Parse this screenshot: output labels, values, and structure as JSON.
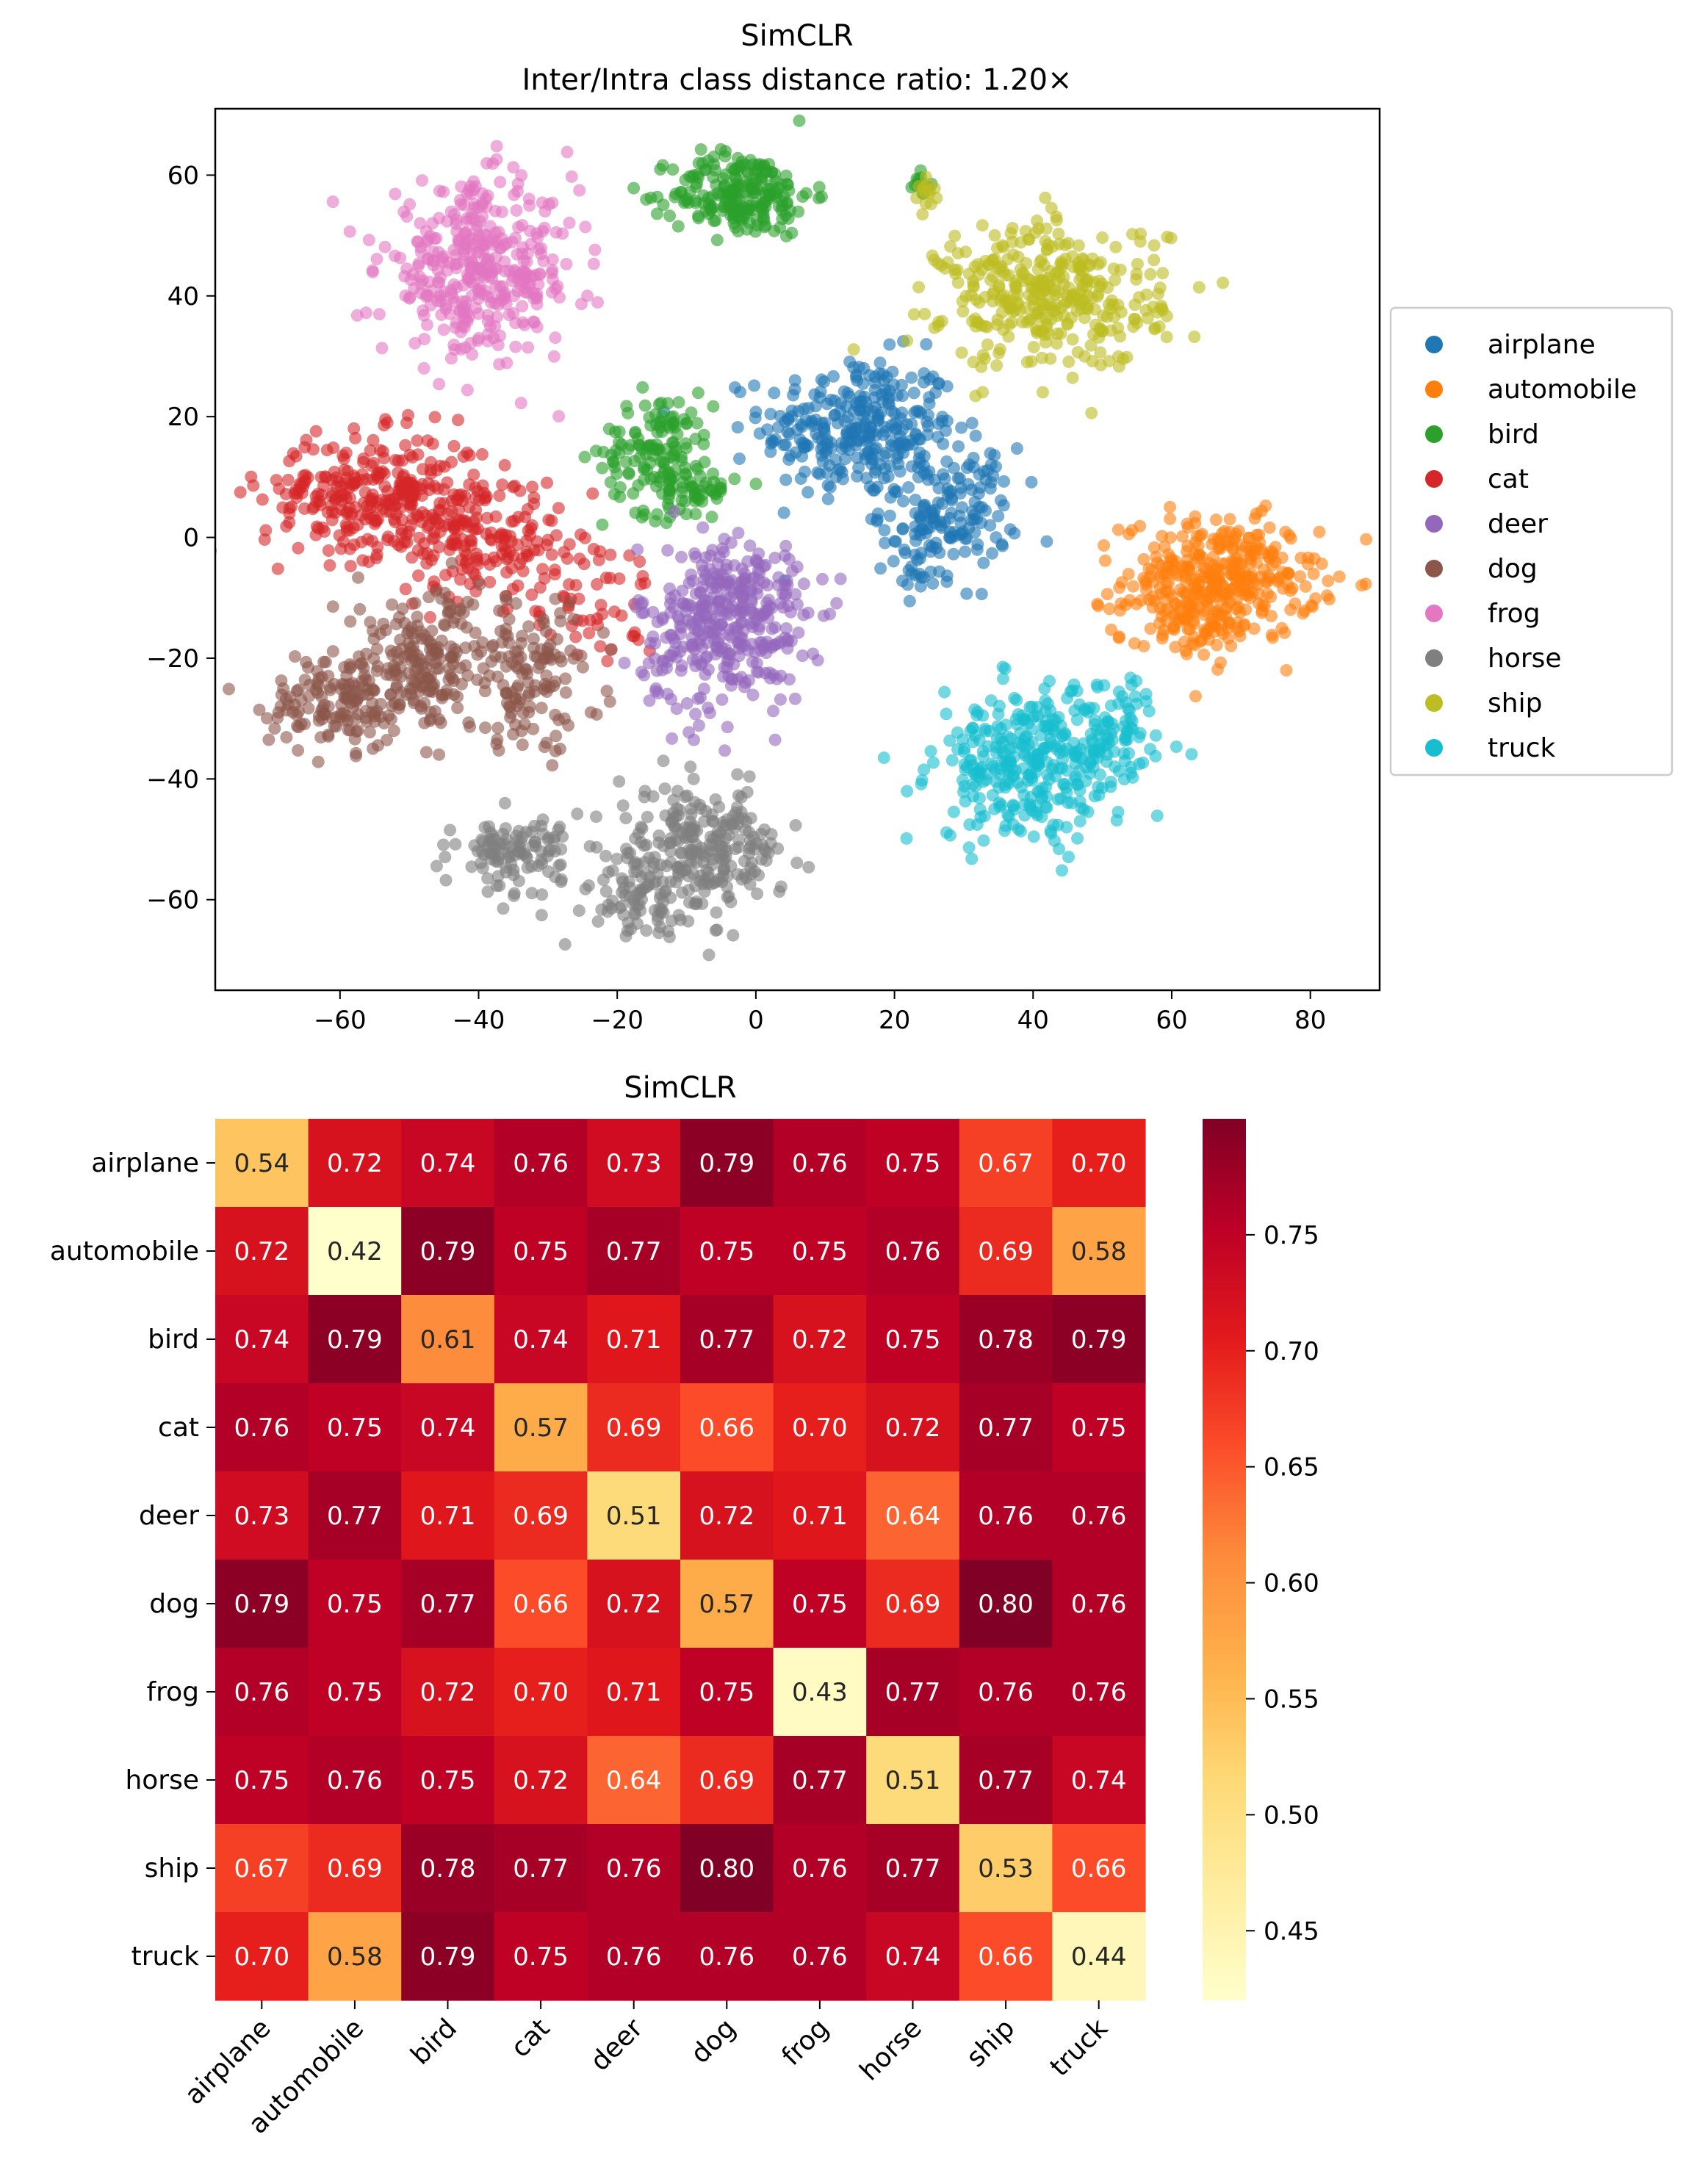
{
  "chart_data": [
    {
      "type": "scatter",
      "title": "SimCLR",
      "subtitle": "Inter/Intra class distance ratio: 1.20×",
      "xlabel": "",
      "ylabel": "",
      "xlim": [
        -78,
        90
      ],
      "ylim": [
        -75,
        71
      ],
      "xticks": [
        -60,
        -40,
        -20,
        0,
        20,
        40,
        60,
        80
      ],
      "yticks": [
        -60,
        -40,
        -20,
        0,
        20,
        40,
        60
      ],
      "xtick_labels": [
        "−60",
        "−40",
        "−20",
        "0",
        "20",
        "40",
        "60",
        "80"
      ],
      "ytick_labels": [
        "−60",
        "−40",
        "−20",
        "0",
        "20",
        "40",
        "60"
      ],
      "grid": false,
      "legend_position": "right",
      "series": [
        {
          "name": "airplane",
          "color": "#1f77b4",
          "clusters": [
            {
              "cx": 15,
              "cy": 18,
              "sx": 7,
              "sy": 6,
              "n": 300
            },
            {
              "cx": 28,
              "cy": 5,
              "sx": 5,
              "sy": 5,
              "n": 130
            },
            {
              "cx": 25,
              "cy": -3,
              "sx": 3,
              "sy": 3,
              "n": 40
            }
          ]
        },
        {
          "name": "automobile",
          "color": "#ff7f0e",
          "clusters": [
            {
              "cx": 67,
              "cy": -7,
              "sx": 7,
              "sy": 5,
              "n": 340
            },
            {
              "cx": 62,
              "cy": -14,
              "sx": 5,
              "sy": 3,
              "n": 60
            }
          ]
        },
        {
          "name": "bird",
          "color": "#2ca02c",
          "clusters": [
            {
              "cx": -2,
              "cy": 57,
              "sx": 5,
              "sy": 3.5,
              "n": 220
            },
            {
              "cx": -14,
              "cy": 14,
              "sx": 4,
              "sy": 5,
              "n": 140
            },
            {
              "cx": -8,
              "cy": 8,
              "sx": 2.5,
              "sy": 2,
              "n": 40
            },
            {
              "cx": 24,
              "cy": 58,
              "sx": 0.8,
              "sy": 1.2,
              "n": 12
            }
          ]
        },
        {
          "name": "cat",
          "color": "#d62728",
          "clusters": [
            {
              "cx": -55,
              "cy": 7,
              "sx": 8,
              "sy": 5,
              "n": 300
            },
            {
              "cx": -40,
              "cy": 0,
              "sx": 6,
              "sy": 5,
              "n": 160
            },
            {
              "cx": -24,
              "cy": -10,
              "sx": 5,
              "sy": 6,
              "n": 60
            }
          ]
        },
        {
          "name": "deer",
          "color": "#9467bd",
          "clusters": [
            {
              "cx": -5,
              "cy": -15,
              "sx": 6,
              "sy": 7,
              "n": 320
            },
            {
              "cx": 0,
              "cy": -8,
              "sx": 4,
              "sy": 4,
              "n": 60
            }
          ]
        },
        {
          "name": "dog",
          "color": "#8c564b",
          "clusters": [
            {
              "cx": -60,
              "cy": -27,
              "sx": 5,
              "sy": 4,
              "n": 140
            },
            {
              "cx": -48,
              "cy": -21,
              "sx": 6,
              "sy": 6,
              "n": 200
            },
            {
              "cx": -32,
              "cy": -23,
              "sx": 5,
              "sy": 6,
              "n": 120
            }
          ]
        },
        {
          "name": "frog",
          "color": "#e377c2",
          "clusters": [
            {
              "cx": -40,
              "cy": 44,
              "sx": 7,
              "sy": 7,
              "n": 380
            }
          ]
        },
        {
          "name": "horse",
          "color": "#7f7f7f",
          "clusters": [
            {
              "cx": -8,
              "cy": -52,
              "sx": 6,
              "sy": 5,
              "n": 260
            },
            {
              "cx": -35,
              "cy": -52,
              "sx": 4,
              "sy": 3,
              "n": 110
            },
            {
              "cx": -18,
              "cy": -60,
              "sx": 4,
              "sy": 3,
              "n": 60
            }
          ]
        },
        {
          "name": "ship",
          "color": "#bcbd22",
          "clusters": [
            {
              "cx": 43,
              "cy": 40,
              "sx": 8,
              "sy": 6,
              "n": 360
            },
            {
              "cx": 24,
              "cy": 57,
              "sx": 1,
              "sy": 1.5,
              "n": 14
            }
          ]
        },
        {
          "name": "truck",
          "color": "#17becf",
          "clusters": [
            {
              "cx": 40,
              "cy": -38,
              "sx": 7,
              "sy": 6,
              "n": 340
            },
            {
              "cx": 52,
              "cy": -30,
              "sx": 3,
              "sy": 4,
              "n": 60
            }
          ]
        }
      ]
    },
    {
      "type": "heatmap",
      "title": "SimCLR",
      "categories": [
        "airplane",
        "automobile",
        "bird",
        "cat",
        "deer",
        "dog",
        "frog",
        "horse",
        "ship",
        "truck"
      ],
      "values": [
        [
          0.54,
          0.72,
          0.74,
          0.76,
          0.73,
          0.79,
          0.76,
          0.75,
          0.67,
          0.7
        ],
        [
          0.72,
          0.42,
          0.79,
          0.75,
          0.77,
          0.75,
          0.75,
          0.76,
          0.69,
          0.58
        ],
        [
          0.74,
          0.79,
          0.61,
          0.74,
          0.71,
          0.77,
          0.72,
          0.75,
          0.78,
          0.79
        ],
        [
          0.76,
          0.75,
          0.74,
          0.57,
          0.69,
          0.66,
          0.7,
          0.72,
          0.77,
          0.75
        ],
        [
          0.73,
          0.77,
          0.71,
          0.69,
          0.51,
          0.72,
          0.71,
          0.64,
          0.76,
          0.76
        ],
        [
          0.79,
          0.75,
          0.77,
          0.66,
          0.72,
          0.57,
          0.75,
          0.69,
          0.8,
          0.76
        ],
        [
          0.76,
          0.75,
          0.72,
          0.7,
          0.71,
          0.75,
          0.43,
          0.77,
          0.76,
          0.76
        ],
        [
          0.75,
          0.76,
          0.75,
          0.72,
          0.64,
          0.69,
          0.77,
          0.51,
          0.77,
          0.74
        ],
        [
          0.67,
          0.69,
          0.78,
          0.77,
          0.76,
          0.8,
          0.76,
          0.77,
          0.53,
          0.66
        ],
        [
          0.7,
          0.58,
          0.79,
          0.75,
          0.76,
          0.76,
          0.76,
          0.74,
          0.66,
          0.44
        ]
      ],
      "value_labels": [
        [
          "0.54",
          "0.72",
          "0.74",
          "0.76",
          "0.73",
          "0.79",
          "0.76",
          "0.75",
          "0.67",
          "0.70"
        ],
        [
          "0.72",
          "0.42",
          "0.79",
          "0.75",
          "0.77",
          "0.75",
          "0.75",
          "0.76",
          "0.69",
          "0.58"
        ],
        [
          "0.74",
          "0.79",
          "0.61",
          "0.74",
          "0.71",
          "0.77",
          "0.72",
          "0.75",
          "0.78",
          "0.79"
        ],
        [
          "0.76",
          "0.75",
          "0.74",
          "0.57",
          "0.69",
          "0.66",
          "0.70",
          "0.72",
          "0.77",
          "0.75"
        ],
        [
          "0.73",
          "0.77",
          "0.71",
          "0.69",
          "0.51",
          "0.72",
          "0.71",
          "0.64",
          "0.76",
          "0.76"
        ],
        [
          "0.79",
          "0.75",
          "0.77",
          "0.66",
          "0.72",
          "0.57",
          "0.75",
          "0.69",
          "0.80",
          "0.76"
        ],
        [
          "0.76",
          "0.75",
          "0.72",
          "0.70",
          "0.71",
          "0.75",
          "0.43",
          "0.77",
          "0.76",
          "0.76"
        ],
        [
          "0.75",
          "0.76",
          "0.75",
          "0.72",
          "0.64",
          "0.69",
          "0.77",
          "0.51",
          "0.77",
          "0.74"
        ],
        [
          "0.67",
          "0.69",
          "0.78",
          "0.77",
          "0.76",
          "0.80",
          "0.76",
          "0.77",
          "0.53",
          "0.66"
        ],
        [
          "0.70",
          "0.58",
          "0.79",
          "0.75",
          "0.76",
          "0.76",
          "0.76",
          "0.74",
          "0.66",
          "0.44"
        ]
      ],
      "colormap": "YlOrRd",
      "vmin": 0.42,
      "vmax": 0.8,
      "colorbar_ticks": [
        0.45,
        0.5,
        0.55,
        0.6,
        0.65,
        0.7,
        0.75
      ],
      "colorbar_tick_labels": [
        "0.45",
        "0.50",
        "0.55",
        "0.60",
        "0.65",
        "0.70",
        "0.75"
      ]
    }
  ]
}
